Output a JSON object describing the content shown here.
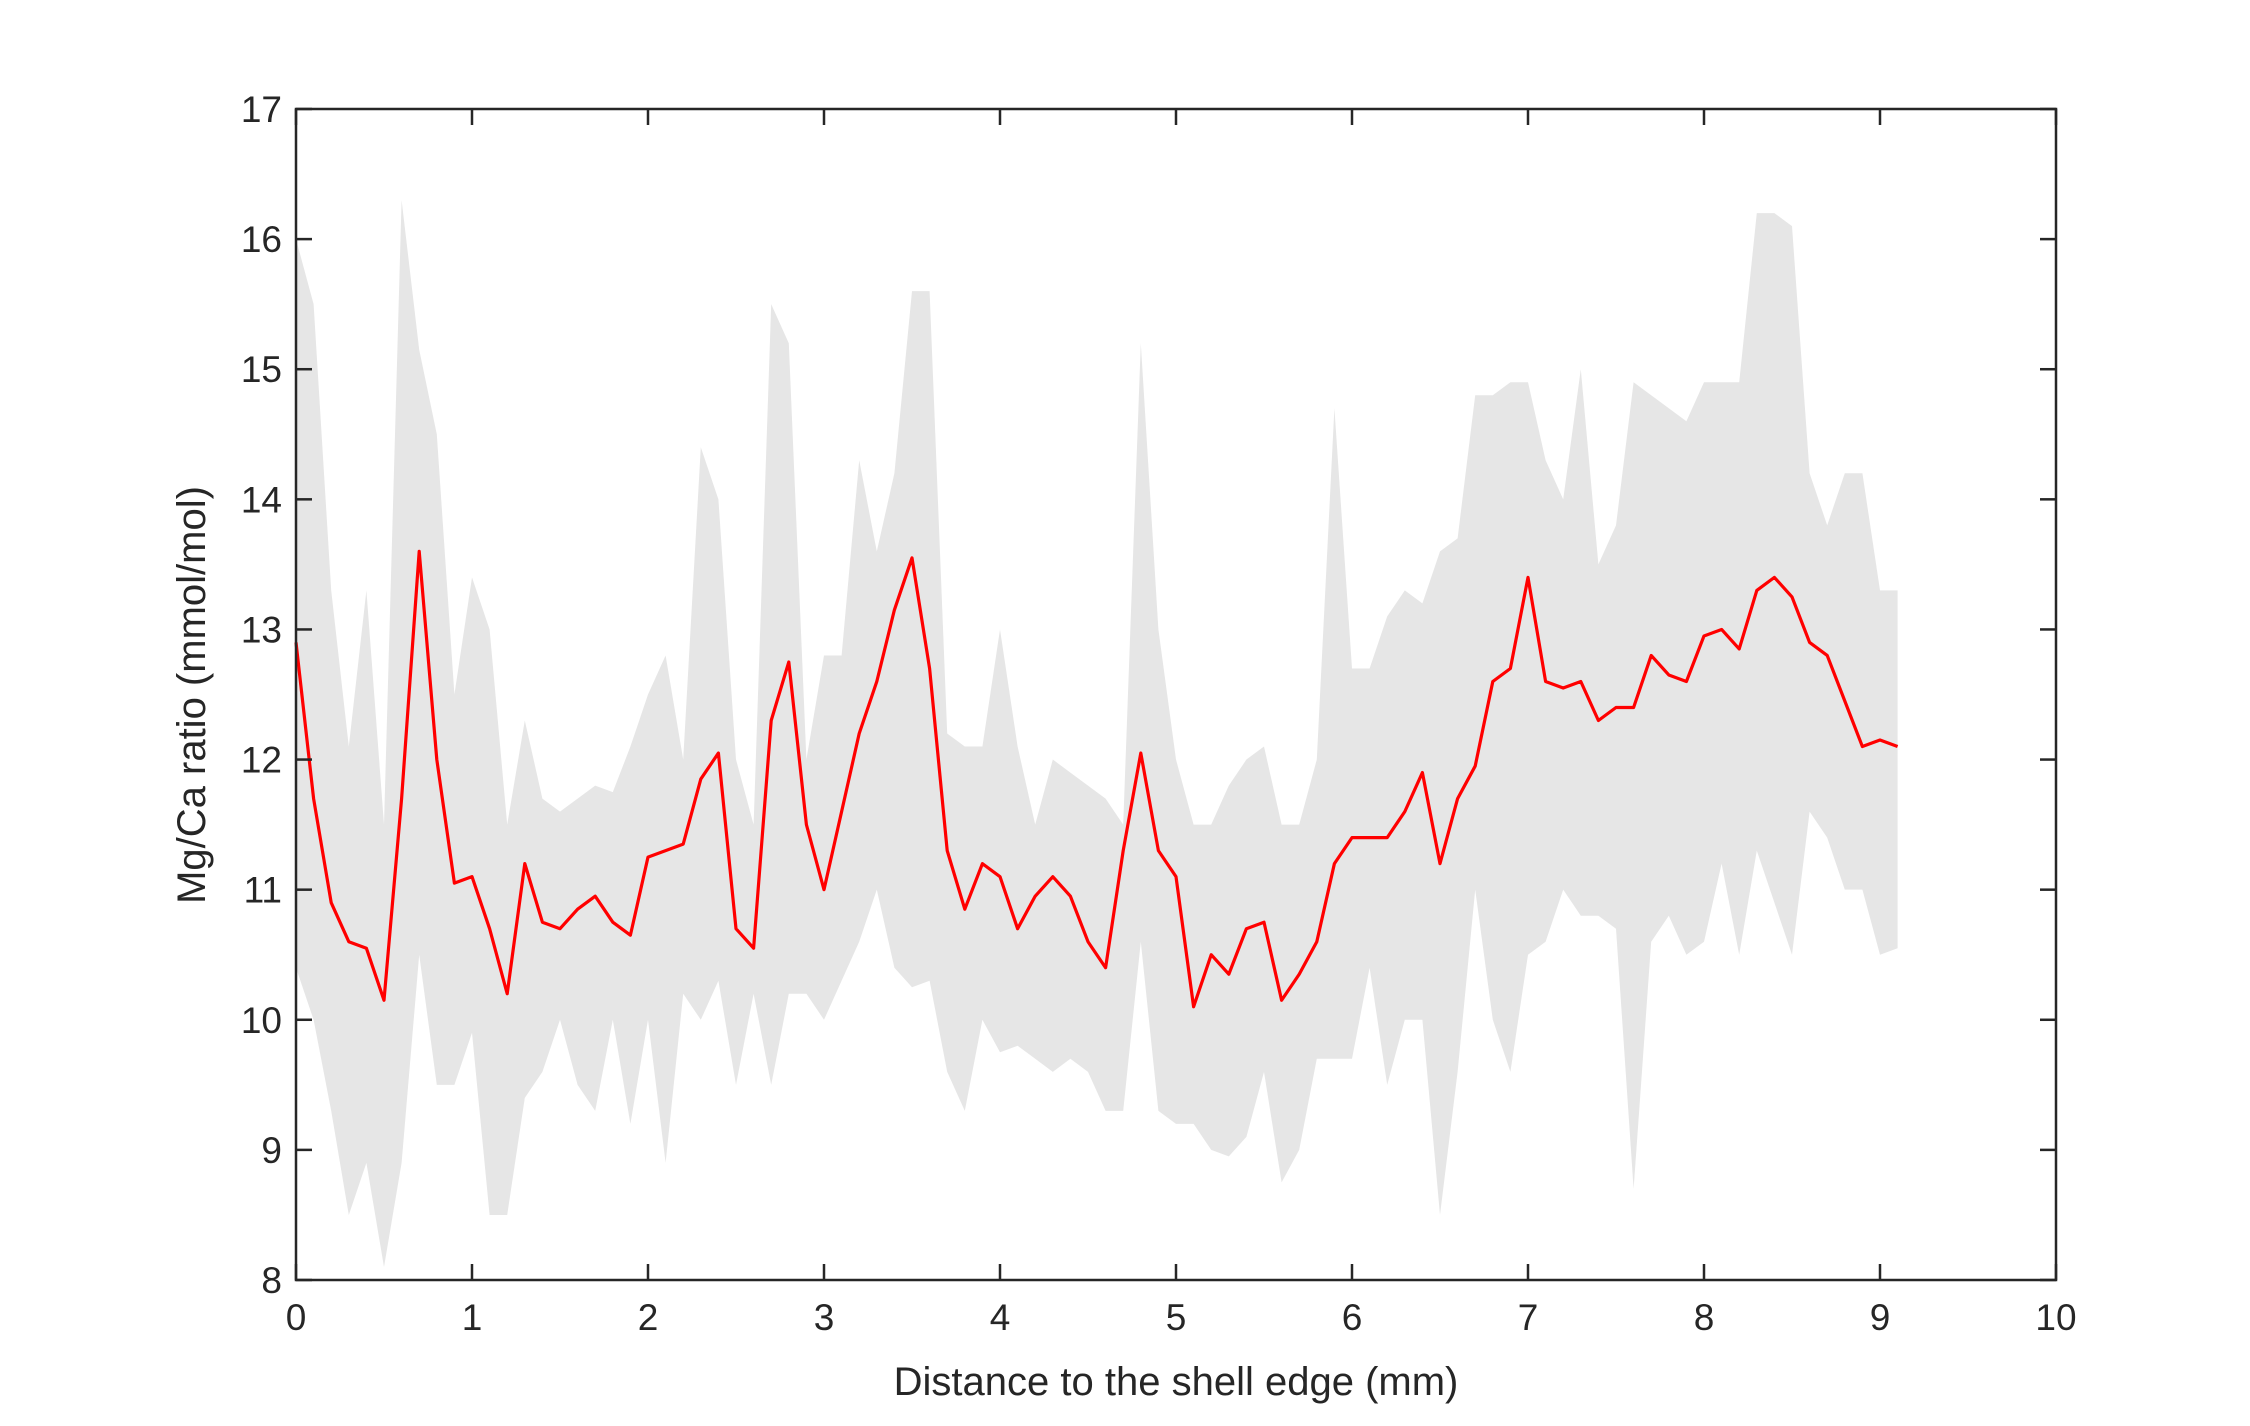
{
  "chart_data": {
    "type": "line",
    "xlabel": "Distance to the shell edge (mm)",
    "ylabel": "Mg/Ca ratio (mmol/mol)",
    "x": [
      0,
      0.1,
      0.2,
      0.3,
      0.4,
      0.5,
      0.6,
      0.7,
      0.8,
      0.9,
      1.0,
      1.1,
      1.2,
      1.3,
      1.4,
      1.5,
      1.6,
      1.7,
      1.8,
      1.9,
      2.0,
      2.1,
      2.2,
      2.3,
      2.4,
      2.5,
      2.6,
      2.7,
      2.8,
      2.9,
      3.0,
      3.1,
      3.2,
      3.3,
      3.4,
      3.5,
      3.6,
      3.7,
      3.8,
      3.9,
      4.0,
      4.1,
      4.2,
      4.3,
      4.4,
      4.5,
      4.6,
      4.7,
      4.8,
      4.9,
      5.0,
      5.1,
      5.2,
      5.3,
      5.4,
      5.5,
      5.6,
      5.7,
      5.8,
      5.9,
      6.0,
      6.1,
      6.2,
      6.3,
      6.4,
      6.5,
      6.6,
      6.7,
      6.8,
      6.9,
      7.0,
      7.1,
      7.2,
      7.3,
      7.4,
      7.5,
      7.6,
      7.7,
      7.8,
      7.9,
      8.0,
      8.1,
      8.2,
      8.3,
      8.4,
      8.5,
      8.6,
      8.7,
      8.8,
      8.9,
      9.0,
      9.1
    ],
    "series": [
      {
        "color": "#ff0000",
        "values": [
          12.9,
          11.7,
          10.9,
          10.6,
          10.55,
          10.15,
          11.7,
          13.6,
          12.0,
          11.05,
          11.1,
          10.7,
          10.2,
          11.2,
          10.75,
          10.7,
          10.85,
          10.95,
          10.75,
          10.65,
          11.25,
          11.3,
          11.35,
          11.85,
          12.05,
          10.7,
          10.55,
          12.3,
          12.75,
          11.5,
          11.0,
          11.6,
          12.2,
          12.6,
          13.15,
          13.55,
          12.7,
          11.3,
          10.85,
          11.2,
          11.1,
          10.7,
          10.95,
          11.1,
          10.95,
          10.6,
          10.4,
          11.3,
          12.05,
          11.3,
          11.1,
          10.1,
          10.5,
          10.35,
          10.7,
          10.75,
          10.15,
          10.35,
          10.6,
          11.2,
          11.4,
          11.4,
          11.4,
          11.6,
          11.9,
          11.2,
          11.7,
          11.95,
          12.6,
          12.7,
          13.4,
          12.6,
          12.55,
          12.6,
          12.3,
          12.4,
          12.4,
          12.8,
          12.65,
          12.6,
          12.95,
          13.0,
          12.85,
          13.3,
          13.4,
          13.25,
          12.9,
          12.8,
          12.45,
          12.1,
          12.15,
          12.1
        ]
      }
    ],
    "band": {
      "color": "#e6e6e6",
      "upper": [
        16.0,
        15.5,
        13.3,
        12.1,
        13.3,
        11.5,
        16.3,
        15.15,
        14.5,
        12.5,
        13.4,
        13.0,
        11.5,
        12.3,
        11.7,
        11.6,
        11.7,
        11.8,
        11.75,
        12.1,
        12.5,
        12.8,
        12.0,
        14.4,
        14.0,
        12.0,
        11.5,
        15.5,
        15.2,
        12.0,
        12.8,
        12.8,
        14.3,
        13.6,
        14.2,
        15.6,
        15.6,
        12.2,
        12.1,
        12.1,
        13.0,
        12.1,
        11.5,
        12.0,
        11.9,
        11.8,
        11.7,
        11.5,
        15.2,
        13.0,
        12.0,
        11.5,
        11.5,
        11.8,
        12.0,
        12.1,
        11.5,
        11.5,
        12.0,
        14.7,
        12.7,
        12.7,
        13.1,
        13.3,
        13.2,
        13.6,
        13.7,
        14.8,
        14.8,
        14.9,
        14.9,
        14.3,
        14.0,
        15.0,
        13.5,
        13.8,
        14.9,
        14.8,
        14.7,
        14.6,
        14.9,
        14.9,
        14.9,
        16.2,
        16.2,
        16.1,
        14.2,
        13.8,
        14.2,
        14.2,
        13.3,
        13.3
      ],
      "lower": [
        10.4,
        10.0,
        9.3,
        8.5,
        8.9,
        8.1,
        8.9,
        10.5,
        9.5,
        9.5,
        9.9,
        8.5,
        8.5,
        9.4,
        9.6,
        10.0,
        9.5,
        9.3,
        10.0,
        9.2,
        10.0,
        8.9,
        10.2,
        10.0,
        10.3,
        9.5,
        10.2,
        9.5,
        10.2,
        10.2,
        10.0,
        10.3,
        10.6,
        11.0,
        10.4,
        10.25,
        10.3,
        9.6,
        9.3,
        10.0,
        9.75,
        9.8,
        9.7,
        9.6,
        9.7,
        9.6,
        9.3,
        9.3,
        10.6,
        9.3,
        9.2,
        9.2,
        9.0,
        8.95,
        9.1,
        9.6,
        8.75,
        9.0,
        9.7,
        9.7,
        9.7,
        10.4,
        9.5,
        10.0,
        10.0,
        8.5,
        9.6,
        11.0,
        10.0,
        9.6,
        10.5,
        10.6,
        11.0,
        10.8,
        10.8,
        10.7,
        8.7,
        10.6,
        10.8,
        10.5,
        10.6,
        11.2,
        10.5,
        11.3,
        10.9,
        10.5,
        11.6,
        11.4,
        11.0,
        11.0,
        10.5,
        10.55
      ]
    },
    "xlim": [
      0,
      10
    ],
    "xticks": [
      0,
      1,
      2,
      3,
      4,
      5,
      6,
      7,
      8,
      9,
      10
    ],
    "ylim": [
      8,
      17
    ],
    "yticks": [
      8,
      9,
      10,
      11,
      12,
      13,
      14,
      15,
      16,
      17
    ]
  }
}
